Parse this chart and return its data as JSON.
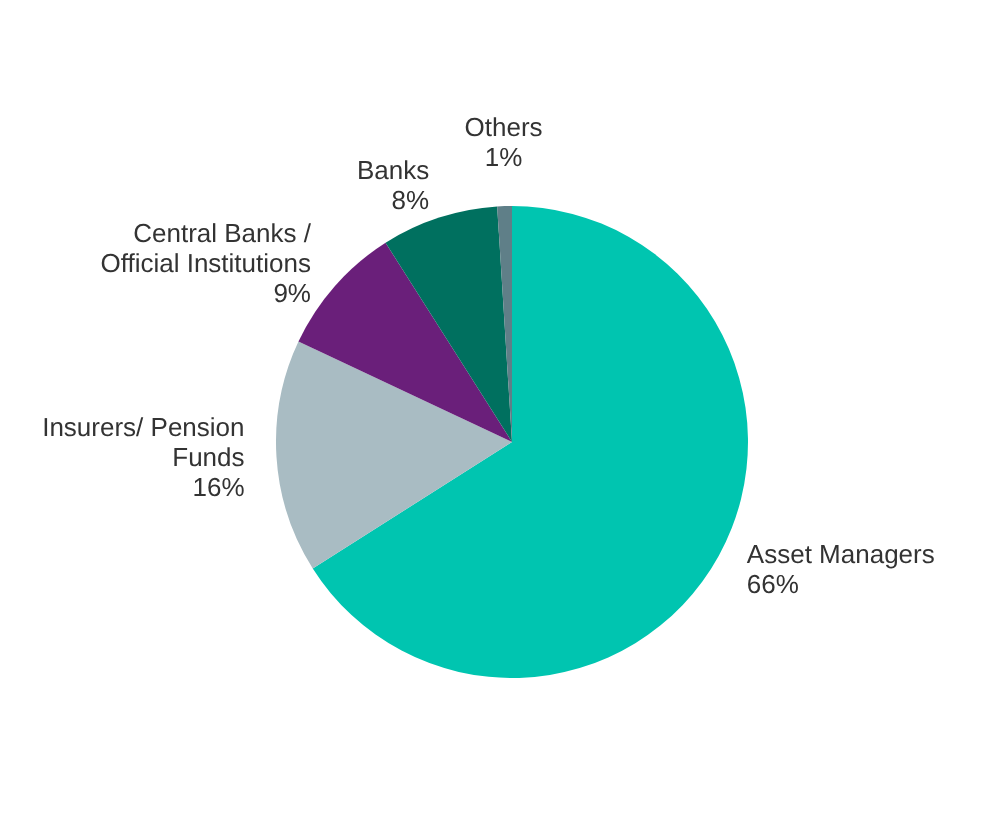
{
  "chart_data": {
    "type": "pie",
    "categories": [
      "Asset Managers",
      "Insurers/ Pension Funds",
      "Central Banks / Official Institutions",
      "Banks",
      "Others"
    ],
    "values": [
      66,
      16,
      9,
      8,
      1
    ],
    "colors": [
      "#00c5b0",
      "#a9bcc3",
      "#6a1f7a",
      "#00705f",
      "#5f7f88"
    ],
    "value_labels": [
      "66%",
      "16%",
      "9%",
      "8%",
      "1%"
    ],
    "legend": false
  }
}
